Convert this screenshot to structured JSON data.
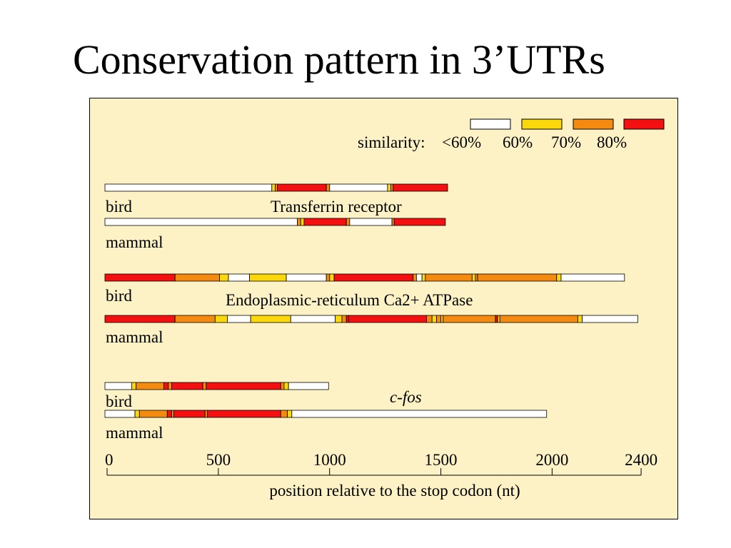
{
  "title": "Conservation pattern in 3’UTRs",
  "legend": {
    "label": "similarity:",
    "items": [
      {
        "label": "<60%",
        "color": "#ffffff"
      },
      {
        "label": "60%",
        "color": "#fbd80b"
      },
      {
        "label": "70%",
        "color": "#f58a10"
      },
      {
        "label": "80%",
        "color": "#f41010"
      }
    ]
  },
  "axis": {
    "label": "position relative to the stop codon (nt)",
    "ticks": [
      {
        "value": 0,
        "label": "0"
      },
      {
        "value": 500,
        "label": "500"
      },
      {
        "value": 1000,
        "label": "1000"
      },
      {
        "value": 1500,
        "label": "1500"
      },
      {
        "value": 2000,
        "label": "2000"
      },
      {
        "value": 2400,
        "label": "2400"
      }
    ],
    "range": [
      0,
      2400
    ]
  },
  "genes": [
    {
      "name": "Transferrin receptor",
      "italic": false,
      "tracks": [
        {
          "species": "bird",
          "segments": [
            [
              0,
              750,
              "w"
            ],
            [
              750,
              765,
              "y"
            ],
            [
              765,
              775,
              "o"
            ],
            [
              775,
              995,
              "r"
            ],
            [
              995,
              1010,
              "o"
            ],
            [
              1010,
              1270,
              "w"
            ],
            [
              1270,
              1285,
              "y"
            ],
            [
              1285,
              1295,
              "o"
            ],
            [
              1295,
              1540,
              "r"
            ]
          ]
        },
        {
          "species": "mammal",
          "segments": [
            [
              0,
              865,
              "w"
            ],
            [
              865,
              880,
              "o"
            ],
            [
              880,
              895,
              "y"
            ],
            [
              895,
              1085,
              "r"
            ],
            [
              1085,
              1100,
              "o"
            ],
            [
              1100,
              1290,
              "w"
            ],
            [
              1290,
              1300,
              "o"
            ],
            [
              1300,
              1530,
              "r"
            ]
          ]
        }
      ]
    },
    {
      "name": "Endoplasmic-reticulum Ca2+ ATPase",
      "italic": false,
      "tracks": [
        {
          "species": "bird",
          "segments": [
            [
              0,
              315,
              "r"
            ],
            [
              315,
              515,
              "o"
            ],
            [
              515,
              555,
              "y"
            ],
            [
              555,
              650,
              "w"
            ],
            [
              650,
              815,
              "y"
            ],
            [
              815,
              995,
              "w"
            ],
            [
              995,
              1010,
              "o"
            ],
            [
              1010,
              1030,
              "y"
            ],
            [
              1030,
              1385,
              "r"
            ],
            [
              1385,
              1400,
              "o"
            ],
            [
              1400,
              1425,
              "w"
            ],
            [
              1425,
              1440,
              "y"
            ],
            [
              1440,
              1650,
              "o"
            ],
            [
              1650,
              1665,
              "y"
            ],
            [
              1665,
              1675,
              "o"
            ],
            [
              1675,
              2030,
              "o"
            ],
            [
              2030,
              2050,
              "y"
            ],
            [
              2050,
              2335,
              "w"
            ]
          ]
        },
        {
          "species": "mammal",
          "segments": [
            [
              0,
              315,
              "r"
            ],
            [
              315,
              495,
              "o"
            ],
            [
              495,
              550,
              "y"
            ],
            [
              550,
              655,
              "w"
            ],
            [
              655,
              835,
              "y"
            ],
            [
              835,
              1035,
              "w"
            ],
            [
              1035,
              1065,
              "y"
            ],
            [
              1065,
              1085,
              "o"
            ],
            [
              1085,
              1095,
              "r"
            ],
            [
              1095,
              1445,
              "r"
            ],
            [
              1445,
              1470,
              "o"
            ],
            [
              1470,
              1490,
              "y"
            ],
            [
              1490,
              1510,
              "o"
            ],
            [
              1510,
              1520,
              "y"
            ],
            [
              1520,
              1755,
              "o"
            ],
            [
              1755,
              1765,
              "r"
            ],
            [
              1765,
              1775,
              "y"
            ],
            [
              1775,
              2125,
              "o"
            ],
            [
              2125,
              2145,
              "y"
            ],
            [
              2145,
              2395,
              "w"
            ]
          ]
        }
      ]
    },
    {
      "name": "c-fos",
      "italic": true,
      "tracks": [
        {
          "species": "bird",
          "segments": [
            [
              0,
              120,
              "w"
            ],
            [
              120,
              140,
              "y"
            ],
            [
              140,
              265,
              "o"
            ],
            [
              265,
              285,
              "r"
            ],
            [
              285,
              300,
              "o"
            ],
            [
              300,
              440,
              "r"
            ],
            [
              440,
              455,
              "o"
            ],
            [
              455,
              790,
              "r"
            ],
            [
              790,
              805,
              "o"
            ],
            [
              805,
              825,
              "y"
            ],
            [
              825,
              1005,
              "w"
            ]
          ]
        },
        {
          "species": "mammal",
          "segments": [
            [
              0,
              135,
              "w"
            ],
            [
              135,
              155,
              "y"
            ],
            [
              155,
              280,
              "o"
            ],
            [
              280,
              300,
              "r"
            ],
            [
              300,
              310,
              "o"
            ],
            [
              310,
              450,
              "r"
            ],
            [
              450,
              460,
              "o"
            ],
            [
              460,
              790,
              "r"
            ],
            [
              790,
              820,
              "o"
            ],
            [
              820,
              840,
              "y"
            ],
            [
              840,
              1985,
              "w"
            ]
          ]
        }
      ]
    }
  ]
}
